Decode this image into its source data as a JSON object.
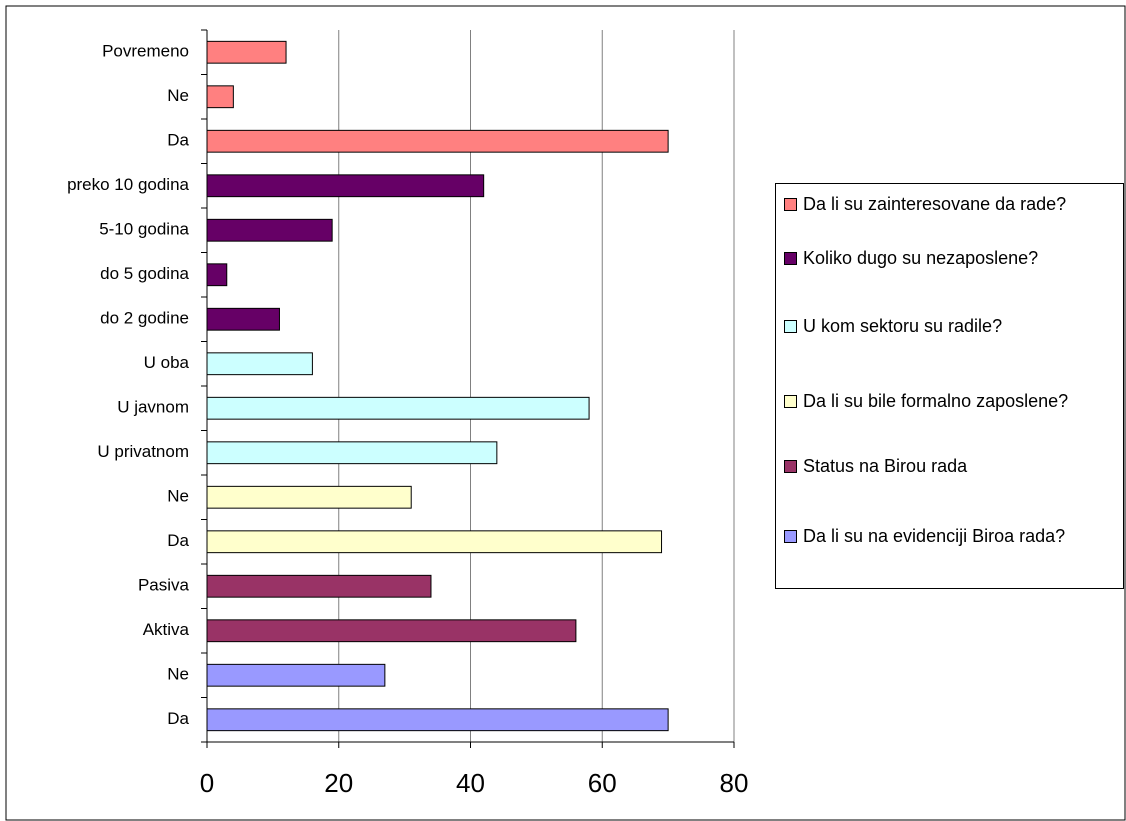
{
  "chart_data": {
    "type": "bar",
    "orientation": "horizontal",
    "categories": [
      "Povremeno",
      "Ne",
      "Da",
      "preko 10 godina",
      "5-10 godina",
      "do 5 godina",
      "do 2 godine",
      "U oba",
      "U javnom",
      "U privatnom",
      "Ne",
      "Da",
      "Pasiva",
      "Aktiva",
      "Ne",
      "Da"
    ],
    "series": [
      {
        "name": "Da li su zainteresovane da rade?",
        "color": "#ff8080",
        "values": [
          12,
          4,
          70,
          null,
          null,
          null,
          null,
          null,
          null,
          null,
          null,
          null,
          null,
          null,
          null,
          null
        ]
      },
      {
        "name": "Koliko dugo su nezaposlene?",
        "color": "#660066",
        "values": [
          null,
          null,
          null,
          42,
          19,
          3,
          11,
          null,
          null,
          null,
          null,
          null,
          null,
          null,
          null,
          null
        ]
      },
      {
        "name": "U kom sektoru su radile?",
        "color": "#ccffff",
        "values": [
          null,
          null,
          null,
          null,
          null,
          null,
          null,
          16,
          58,
          44,
          null,
          null,
          null,
          null,
          null,
          null
        ]
      },
      {
        "name": "Da li su bile formalno zaposlene?",
        "color": "#ffffcc",
        "values": [
          null,
          null,
          null,
          null,
          null,
          null,
          null,
          null,
          null,
          null,
          31,
          69,
          null,
          null,
          null,
          null
        ]
      },
      {
        "name": "Status na Birou rada",
        "color": "#993366",
        "values": [
          null,
          null,
          null,
          null,
          null,
          null,
          null,
          null,
          null,
          null,
          null,
          null,
          34,
          56,
          null,
          null
        ]
      },
      {
        "name": "Da li su na evidenciji Biroa rada?",
        "color": "#9999ff",
        "values": [
          null,
          null,
          null,
          null,
          null,
          null,
          null,
          null,
          null,
          null,
          null,
          null,
          null,
          null,
          27,
          70
        ]
      }
    ],
    "xlim": [
      0,
      80
    ],
    "xticks": [
      0,
      20,
      40,
      60,
      80
    ],
    "grid": true,
    "legend": "right"
  }
}
